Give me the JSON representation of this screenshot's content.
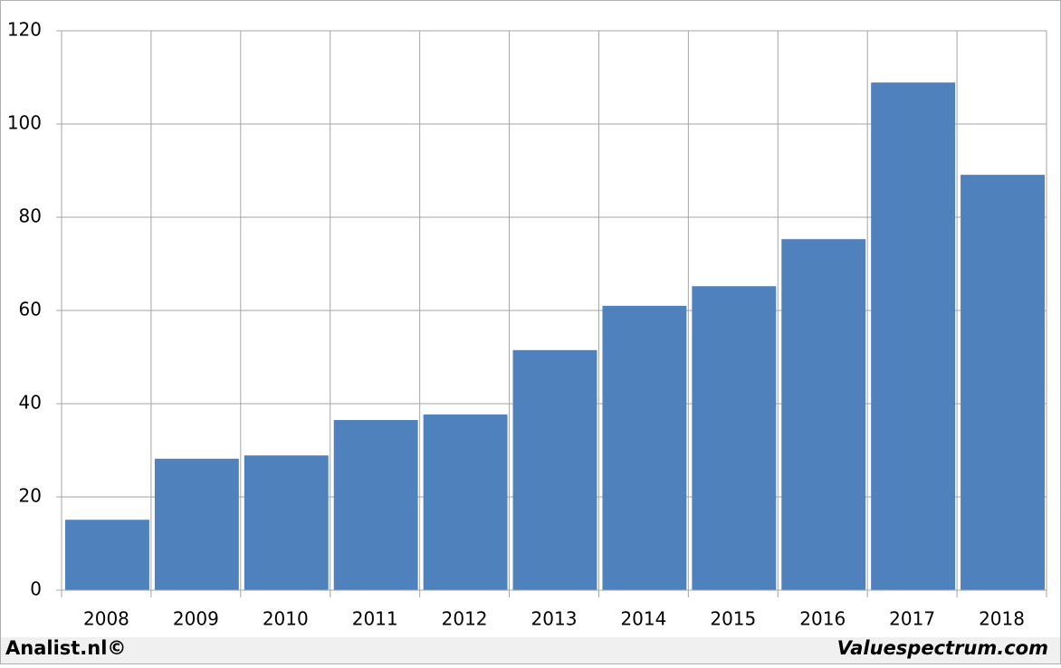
{
  "chart_data": {
    "type": "bar",
    "categories": [
      "2008",
      "2009",
      "2010",
      "2011",
      "2012",
      "2013",
      "2014",
      "2015",
      "2016",
      "2017",
      "2018"
    ],
    "values": [
      15.1,
      28.2,
      28.9,
      36.5,
      37.7,
      51.5,
      61,
      65.2,
      75.3,
      108.9,
      89.1
    ],
    "color": "#4f81bd",
    "ylim": [
      0,
      120
    ],
    "yticks": [
      0,
      20,
      40,
      60,
      80,
      100,
      120
    ],
    "grid": true
  },
  "footer": {
    "left": "Analist.nl©",
    "right": "Valuespectrum.com"
  }
}
